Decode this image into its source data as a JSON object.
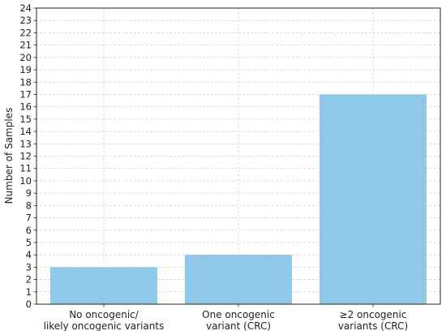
{
  "chart_data": {
    "type": "bar",
    "categories": [
      [
        "No oncogenic/",
        "likely oncogenic variants"
      ],
      [
        "One oncogenic",
        "variant (CRC)"
      ],
      [
        "≥2 oncogenic",
        "variants (CRC)"
      ]
    ],
    "values": [
      3,
      4,
      17
    ],
    "title": "",
    "xlabel": "",
    "ylabel": "Number of Samples",
    "ylim": [
      0,
      24
    ],
    "yticks": [
      0,
      1,
      2,
      3,
      4,
      5,
      6,
      7,
      8,
      9,
      10,
      11,
      12,
      13,
      14,
      15,
      16,
      17,
      18,
      19,
      20,
      21,
      22,
      23,
      24
    ],
    "grid": true,
    "bar_color": "#90c8e8"
  }
}
